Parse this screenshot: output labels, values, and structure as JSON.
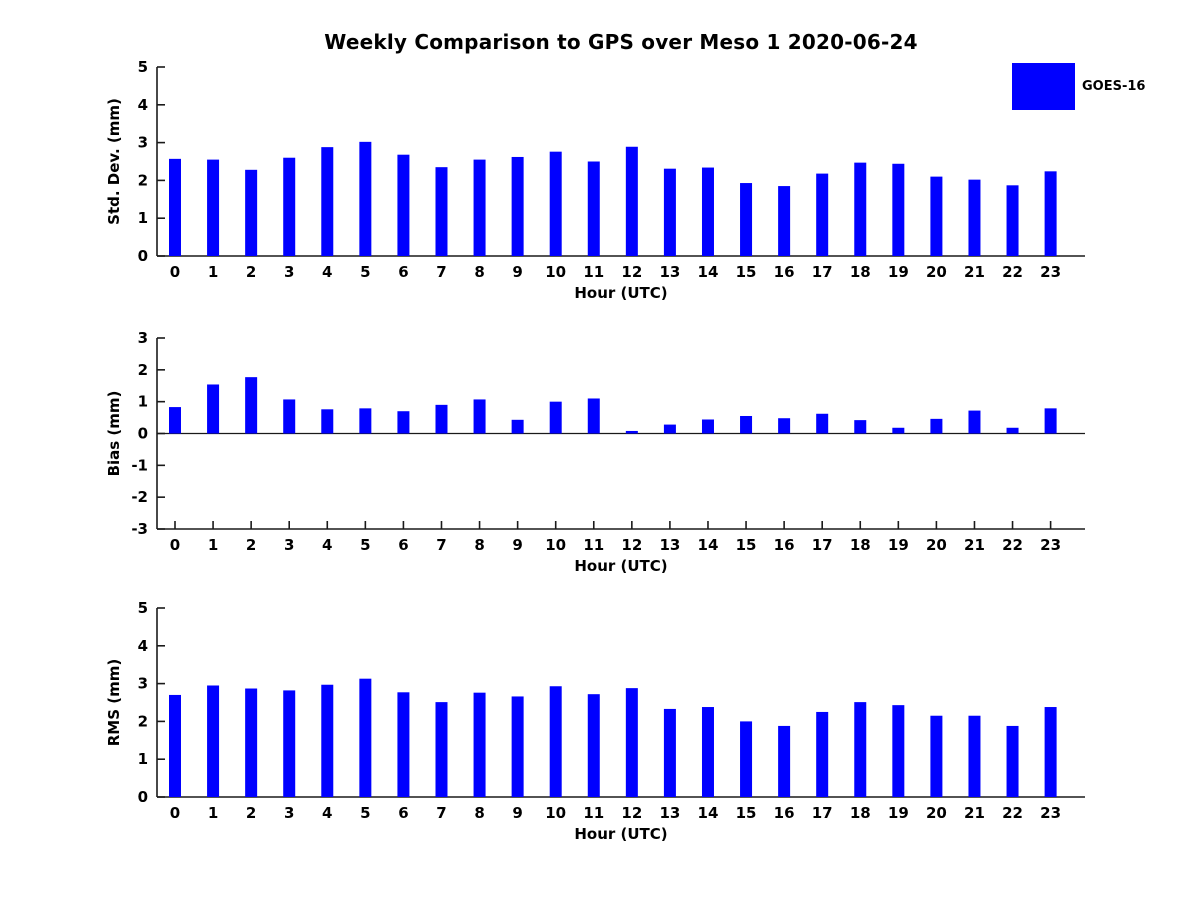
{
  "title": "Weekly Comparison to GPS over Meso 1 2020-06-24",
  "legend": {
    "label": "GOES-16",
    "color": "#0000ff",
    "position": "upper right"
  },
  "chart_data": [
    {
      "type": "bar",
      "panel": "std-dev",
      "title": "",
      "xlabel": "Hour (UTC)",
      "ylabel": "Std. Dev. (mm)",
      "ylim": [
        0,
        5
      ],
      "yticks": [
        0,
        1,
        2,
        3,
        4,
        5
      ],
      "grid": false,
      "categories": [
        "0",
        "1",
        "2",
        "3",
        "4",
        "5",
        "6",
        "7",
        "8",
        "9",
        "10",
        "11",
        "12",
        "13",
        "14",
        "15",
        "16",
        "17",
        "18",
        "19",
        "20",
        "21",
        "22",
        "23"
      ],
      "series": [
        {
          "name": "GOES-16",
          "color": "#0000ff",
          "values": [
            2.57,
            2.55,
            2.28,
            2.6,
            2.88,
            3.02,
            2.68,
            2.35,
            2.55,
            2.62,
            2.76,
            2.5,
            2.89,
            2.31,
            2.34,
            1.93,
            1.85,
            2.18,
            2.47,
            2.44,
            2.1,
            2.02,
            1.87,
            2.24
          ]
        }
      ]
    },
    {
      "type": "bar",
      "panel": "bias",
      "title": "",
      "xlabel": "Hour (UTC)",
      "ylabel": "Bias (mm)",
      "ylim": [
        -3,
        3
      ],
      "yticks": [
        -3,
        -2,
        -1,
        0,
        1,
        2,
        3
      ],
      "grid": false,
      "categories": [
        "0",
        "1",
        "2",
        "3",
        "4",
        "5",
        "6",
        "7",
        "8",
        "9",
        "10",
        "11",
        "12",
        "13",
        "14",
        "15",
        "16",
        "17",
        "18",
        "19",
        "20",
        "21",
        "22",
        "23"
      ],
      "series": [
        {
          "name": "GOES-16",
          "color": "#0000ff",
          "values": [
            0.83,
            1.54,
            1.77,
            1.07,
            0.76,
            0.79,
            0.7,
            0.9,
            1.07,
            0.43,
            1.0,
            1.1,
            0.08,
            0.28,
            0.44,
            0.55,
            0.48,
            0.62,
            0.42,
            0.18,
            0.46,
            0.72,
            0.18,
            0.79
          ]
        }
      ]
    },
    {
      "type": "bar",
      "panel": "rms",
      "title": "",
      "xlabel": "Hour (UTC)",
      "ylabel": "RMS (mm)",
      "ylim": [
        0,
        5
      ],
      "yticks": [
        0,
        1,
        2,
        3,
        4,
        5
      ],
      "grid": false,
      "categories": [
        "0",
        "1",
        "2",
        "3",
        "4",
        "5",
        "6",
        "7",
        "8",
        "9",
        "10",
        "11",
        "12",
        "13",
        "14",
        "15",
        "16",
        "17",
        "18",
        "19",
        "20",
        "21",
        "22",
        "23"
      ],
      "series": [
        {
          "name": "GOES-16",
          "color": "#0000ff",
          "values": [
            2.7,
            2.95,
            2.87,
            2.82,
            2.97,
            3.13,
            2.77,
            2.51,
            2.76,
            2.66,
            2.93,
            2.72,
            2.88,
            2.33,
            2.38,
            2.0,
            1.88,
            2.25,
            2.51,
            2.43,
            2.15,
            2.15,
            1.88,
            2.38
          ]
        }
      ]
    }
  ]
}
